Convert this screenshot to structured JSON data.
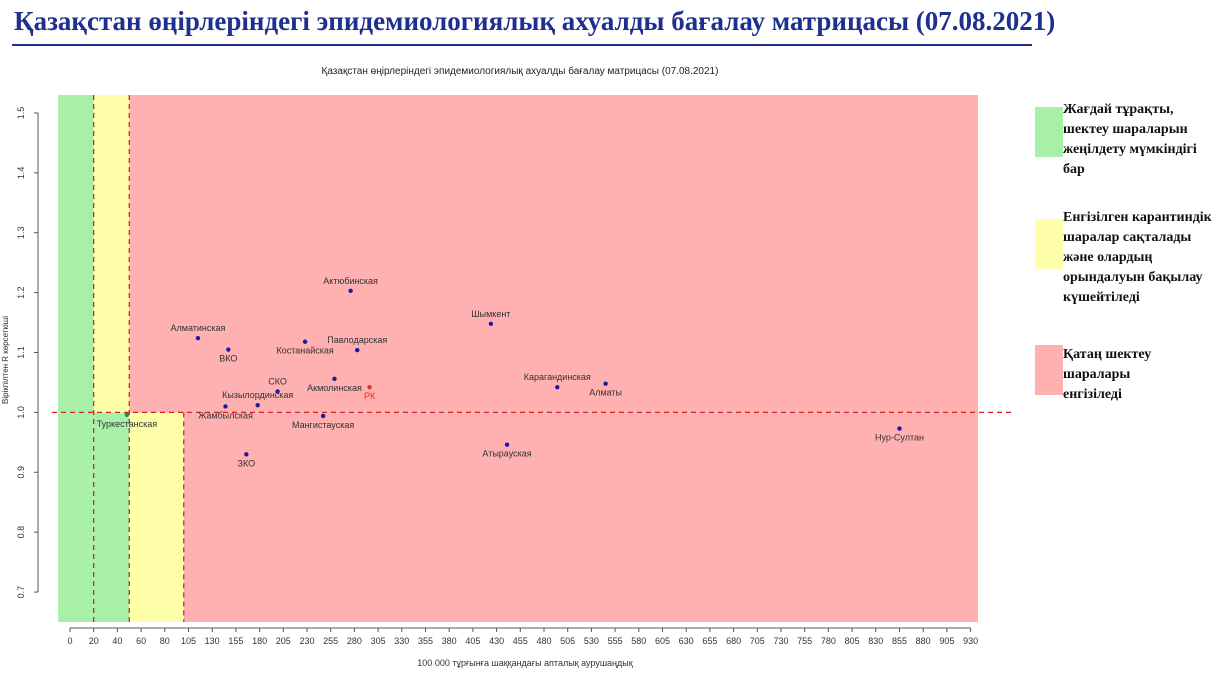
{
  "page": {
    "title": "Қазақстан өңірлеріндегі эпидемиологиялық ахуалды бағалау матрицасы  (07.08.2021)"
  },
  "legend": [
    {
      "color": "#a8f0a8",
      "text": "Жағдай тұрақты, шектеу шараларын жеңілдету мүмкіндігі бар"
    },
    {
      "color": "#ffffaa",
      "text": "Енгізілген карантиндік шаралар сақталады және олардың орындалуын бақылау күшейтіледі"
    },
    {
      "color": "#ffb0b0",
      "text": "Қатаң шектеу шаралары енгізіледі"
    }
  ],
  "chart_data": {
    "type": "scatter",
    "title": "Қазақстан өңірлеріндегі эпидемиологиялық ахуалды бағалау матрицасы  (07.08.2021)",
    "xlabel": "100 000 тұрғынға шаққандағы апталық аурушаңдық",
    "ylabel": "Вірікпілтен R көрсеткіші",
    "xlim": [
      -10,
      960
    ],
    "ylim": [
      0.65,
      1.53
    ],
    "xticks": [
      0,
      20,
      40,
      60,
      80,
      105,
      130,
      155,
      180,
      205,
      230,
      255,
      280,
      305,
      330,
      355,
      380,
      405,
      430,
      455,
      480,
      505,
      530,
      555,
      580,
      605,
      630,
      655,
      680,
      705,
      730,
      755,
      780,
      805,
      830,
      855,
      880,
      905,
      930
    ],
    "yticks": [
      0.7,
      0.8,
      0.9,
      1.0,
      1.1,
      1.2,
      1.3,
      1.4,
      1.5
    ],
    "reference_lines": {
      "x": [
        20,
        50,
        100
      ],
      "y": 1.0
    },
    "regions": [
      {
        "zone": "green",
        "x": [
          -10,
          20
        ],
        "y": [
          0.65,
          1.53
        ],
        "color": "#a8f0a8"
      },
      {
        "zone": "green",
        "x": [
          20,
          50
        ],
        "y": [
          0.65,
          1.0
        ],
        "color": "#a8f0a8"
      },
      {
        "zone": "yellow",
        "x": [
          20,
          50
        ],
        "y": [
          1.0,
          1.53
        ],
        "color": "#ffffaa"
      },
      {
        "zone": "yellow",
        "x": [
          50,
          100
        ],
        "y": [
          0.65,
          1.0
        ],
        "color": "#ffffaa"
      },
      {
        "zone": "red",
        "x": [
          50,
          960
        ],
        "y": [
          1.0,
          1.53
        ],
        "color": "#ffb0b0"
      },
      {
        "zone": "red",
        "x": [
          100,
          960
        ],
        "y": [
          0.65,
          1.0
        ],
        "color": "#ffb0b0"
      }
    ],
    "points": [
      {
        "label": "Актюбинская",
        "x": 276,
        "y": 1.203,
        "color": "#1a1aa0",
        "anchor": "above"
      },
      {
        "label": "Шымкент",
        "x": 424,
        "y": 1.148,
        "color": "#1a1aa0",
        "anchor": "above"
      },
      {
        "label": "Алматинская",
        "x": 115,
        "y": 1.124,
        "color": "#1a1aa0",
        "anchor": "above"
      },
      {
        "label": "ВКО",
        "x": 147,
        "y": 1.105,
        "color": "#1a1aa0",
        "anchor": "below"
      },
      {
        "label": "Костанайская",
        "x": 228,
        "y": 1.118,
        "color": "#1a1aa0",
        "anchor": "below"
      },
      {
        "label": "Павлодарская",
        "x": 283,
        "y": 1.104,
        "color": "#1a1aa0",
        "anchor": "above"
      },
      {
        "label": "СКО",
        "x": 199,
        "y": 1.035,
        "color": "#1a1aa0",
        "anchor": "above"
      },
      {
        "label": "Акмолинская",
        "x": 259,
        "y": 1.056,
        "color": "#1a1aa0",
        "anchor": "below"
      },
      {
        "label": "РК",
        "x": 296,
        "y": 1.042,
        "color": "#e03030",
        "anchor": "below"
      },
      {
        "label": "Карагандинская",
        "x": 494,
        "y": 1.042,
        "color": "#1a1aa0",
        "anchor": "above"
      },
      {
        "label": "Алматы",
        "x": 545,
        "y": 1.048,
        "color": "#1a1aa0",
        "anchor": "below"
      },
      {
        "label": "Кызылординская",
        "x": 178,
        "y": 1.012,
        "color": "#1a1aa0",
        "anchor": "above"
      },
      {
        "label": "Жамбылская",
        "x": 144,
        "y": 1.01,
        "color": "#1a1aa0",
        "anchor": "below"
      },
      {
        "label": "Мангистауская",
        "x": 247,
        "y": 0.994,
        "color": "#1a1aa0",
        "anchor": "below"
      },
      {
        "label": "Туркестанская",
        "x": 48,
        "y": 0.996,
        "color": "#1a8a5a",
        "anchor": "below"
      },
      {
        "label": "Атырауская",
        "x": 441,
        "y": 0.946,
        "color": "#1a1aa0",
        "anchor": "below"
      },
      {
        "label": "ЗКО",
        "x": 166,
        "y": 0.93,
        "color": "#1a1aa0",
        "anchor": "below"
      },
      {
        "label": "Нур-Султан",
        "x": 855,
        "y": 0.973,
        "color": "#1a1aa0",
        "anchor": "below"
      }
    ]
  }
}
